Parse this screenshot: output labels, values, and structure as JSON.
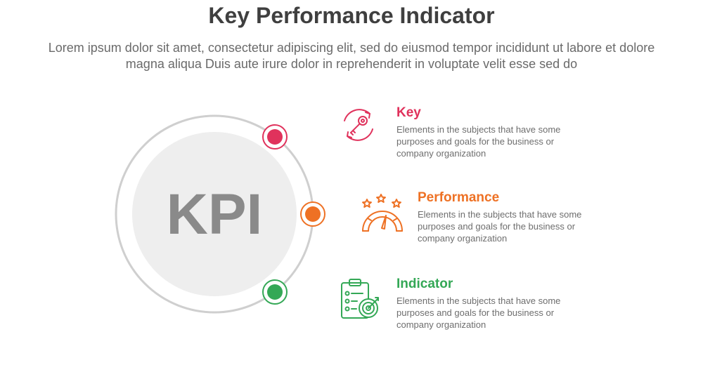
{
  "header": {
    "title": "Key Performance Indicator",
    "subtitle": "Lorem ipsum dolor sit amet, consectetur adipiscing elit, sed do eiusmod tempor incididunt ut labore et dolore magna aliqua Duis aute irure dolor in reprehenderit in voluptate velit esse sed do"
  },
  "center": {
    "label": "KPI"
  },
  "items": [
    {
      "heading": "Key",
      "description": "Elements in the subjects that have some purposes and goals for the business or company organization",
      "icon": "key-cycle-icon",
      "color": "#e0325c"
    },
    {
      "heading": "Performance",
      "description": "Elements in the subjects that have some purposes and goals for the business or company organization",
      "icon": "speedometer-stars-icon",
      "color": "#ee7124"
    },
    {
      "heading": "Indicator",
      "description": "Elements in the subjects that have some purposes and goals for the business or company organization",
      "icon": "clipboard-target-icon",
      "color": "#34a856"
    }
  ],
  "colors": {
    "ring": "#cfcfcf",
    "inner_circle": "#eeeeee",
    "title": "#3f3f3f"
  }
}
